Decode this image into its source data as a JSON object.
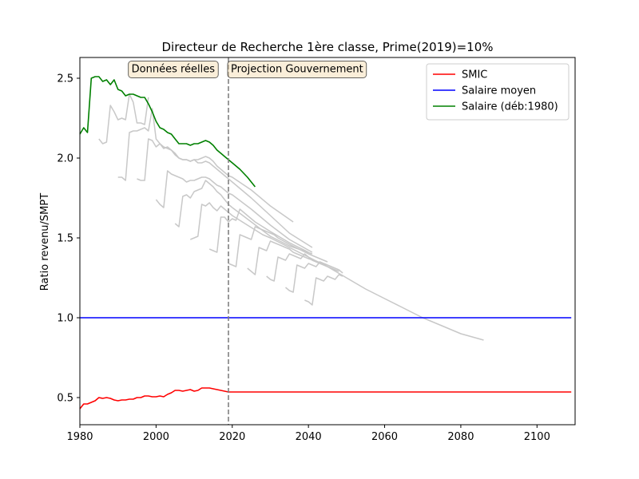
{
  "chart_data": {
    "type": "line",
    "title": "Directeur de Recherche 1ère classe, Prime(2019)=10%",
    "xlabel": "",
    "ylabel": "Ratio revenu/SMPT",
    "xlim": [
      1980,
      2110
    ],
    "ylim": [
      0.33,
      2.63
    ],
    "xticks": [
      1980,
      2000,
      2020,
      2040,
      2060,
      2080,
      2100
    ],
    "yticks": [
      0.5,
      1.0,
      1.5,
      2.0,
      2.5
    ],
    "xtick_labels": [
      "1980",
      "2000",
      "2020",
      "2040",
      "2060",
      "2080",
      "2100"
    ],
    "ytick_labels": [
      "0.5",
      "1.0",
      "1.5",
      "2.0",
      "2.5"
    ],
    "vline": {
      "x": 2019,
      "color": "#808080",
      "style": "dashed"
    },
    "annotations": [
      {
        "text": "Données réelles",
        "x": 2004.5,
        "y": 2.56
      },
      {
        "text": "Projection Gouvernement",
        "x": 2037,
        "y": 2.56
      }
    ],
    "legend": {
      "placement": "upper right"
    },
    "series": [
      {
        "name": "SMIC",
        "color": "#ff0000",
        "x": [
          1980,
          1981,
          1982,
          1983,
          1984,
          1985,
          1986,
          1987,
          1988,
          1989,
          1990,
          1991,
          1992,
          1993,
          1994,
          1995,
          1996,
          1997,
          1998,
          1999,
          2000,
          2001,
          2002,
          2003,
          2004,
          2005,
          2006,
          2007,
          2008,
          2009,
          2010,
          2011,
          2012,
          2013,
          2014,
          2015,
          2016,
          2017,
          2018,
          2019,
          2020,
          2030,
          2040,
          2060,
          2080,
          2100,
          2109
        ],
        "y": [
          0.43,
          0.46,
          0.46,
          0.47,
          0.48,
          0.5,
          0.495,
          0.5,
          0.495,
          0.485,
          0.48,
          0.485,
          0.485,
          0.49,
          0.49,
          0.5,
          0.5,
          0.51,
          0.51,
          0.505,
          0.505,
          0.51,
          0.505,
          0.52,
          0.53,
          0.545,
          0.545,
          0.54,
          0.545,
          0.55,
          0.54,
          0.545,
          0.56,
          0.56,
          0.56,
          0.555,
          0.55,
          0.545,
          0.54,
          0.535,
          0.535,
          0.535,
          0.535,
          0.535,
          0.535,
          0.535,
          0.535
        ]
      },
      {
        "name": "Salaire moyen",
        "color": "#0000ff",
        "x": [
          1980,
          2109
        ],
        "y": [
          1.0,
          1.0
        ]
      },
      {
        "name": "Salaire (déb:1980)",
        "color": "#008000",
        "x": [
          1980,
          1981,
          1982,
          1983,
          1984,
          1985,
          1986,
          1987,
          1988,
          1989,
          1990,
          1991,
          1992,
          1993,
          1994,
          1995,
          1996,
          1997,
          1998,
          1999,
          2000,
          2001,
          2002,
          2003,
          2004,
          2005,
          2006,
          2007,
          2008,
          2009,
          2010,
          2011,
          2012,
          2013,
          2014,
          2015,
          2016,
          2017,
          2018,
          2019,
          2020,
          2022,
          2024,
          2026
        ],
        "y": [
          2.15,
          2.19,
          2.16,
          2.5,
          2.51,
          2.51,
          2.48,
          2.49,
          2.46,
          2.49,
          2.43,
          2.42,
          2.39,
          2.4,
          2.4,
          2.39,
          2.38,
          2.38,
          2.34,
          2.29,
          2.23,
          2.19,
          2.18,
          2.16,
          2.15,
          2.12,
          2.09,
          2.09,
          2.09,
          2.08,
          2.09,
          2.09,
          2.1,
          2.11,
          2.1,
          2.08,
          2.05,
          2.03,
          2.01,
          1.99,
          1.97,
          1.93,
          1.88,
          1.82
        ]
      }
    ],
    "cohort_series": [
      {
        "color": "#c8c8c8",
        "x": [
          1985,
          1986,
          1987,
          1988,
          1989,
          1990,
          1991,
          1992,
          1993,
          1994,
          1995,
          1996,
          1997,
          1998
        ],
        "y": [
          2.12,
          2.09,
          2.1,
          2.33,
          2.29,
          2.24,
          2.25,
          2.24,
          2.4,
          2.35,
          2.22,
          2.22,
          2.21,
          2.38
        ]
      },
      {
        "color": "#c8c8c8",
        "x": [
          1990,
          1991,
          1992,
          1993,
          1994,
          1995,
          1996,
          1997,
          1998,
          1999,
          2000,
          2001,
          2002,
          2003,
          2004,
          2005,
          2006,
          2007,
          2008,
          2009,
          2010,
          2011,
          2012,
          2013,
          2014,
          2015,
          2016,
          2017,
          2018,
          2019,
          2020,
          2025,
          2030,
          2036
        ],
        "y": [
          1.88,
          1.88,
          1.86,
          2.16,
          2.17,
          2.17,
          2.18,
          2.19,
          2.17,
          2.31,
          2.12,
          2.09,
          2.07,
          2.06,
          2.05,
          2.02,
          2.0,
          1.99,
          1.99,
          1.98,
          1.99,
          1.99,
          2.0,
          2.01,
          2.0,
          1.98,
          1.95,
          1.93,
          1.91,
          1.89,
          1.88,
          1.8,
          1.7,
          1.6
        ]
      },
      {
        "color": "#c8c8c8",
        "x": [
          1995,
          1996,
          1997,
          1998,
          1999,
          2000,
          2001,
          2002,
          2003,
          2004,
          2005,
          2006,
          2007,
          2008,
          2009,
          2010,
          2011,
          2012,
          2013,
          2014,
          2015,
          2016,
          2017,
          2018,
          2019,
          2020,
          2025,
          2030,
          2035,
          2041
        ],
        "y": [
          1.87,
          1.86,
          1.86,
          2.12,
          2.11,
          2.07,
          2.09,
          2.06,
          2.07,
          2.05,
          2.03,
          2.0,
          1.99,
          1.99,
          1.98,
          1.99,
          1.97,
          1.97,
          1.98,
          1.97,
          1.95,
          1.93,
          1.91,
          1.89,
          1.87,
          1.85,
          1.75,
          1.64,
          1.53,
          1.44
        ]
      },
      {
        "color": "#c8c8c8",
        "x": [
          2000,
          2001,
          2002,
          2003,
          2004,
          2005,
          2006,
          2007,
          2008,
          2009,
          2010,
          2011,
          2012,
          2013,
          2014,
          2015,
          2016,
          2017,
          2018,
          2019,
          2020,
          2025,
          2030,
          2035,
          2041
        ],
        "y": [
          1.74,
          1.71,
          1.69,
          1.92,
          1.9,
          1.89,
          1.88,
          1.87,
          1.85,
          1.86,
          1.86,
          1.87,
          1.88,
          1.88,
          1.87,
          1.85,
          1.83,
          1.82,
          1.8,
          1.78,
          1.77,
          1.68,
          1.58,
          1.49,
          1.41
        ]
      },
      {
        "color": "#c8c8c8",
        "x": [
          2005,
          2006,
          2007,
          2008,
          2009,
          2010,
          2011,
          2012,
          2013,
          2014,
          2015,
          2016,
          2017,
          2018,
          2019,
          2020,
          2025,
          2030,
          2035,
          2041
        ],
        "y": [
          1.59,
          1.57,
          1.76,
          1.77,
          1.75,
          1.79,
          1.8,
          1.81,
          1.86,
          1.84,
          1.82,
          1.79,
          1.77,
          1.74,
          1.71,
          1.69,
          1.6,
          1.51,
          1.45,
          1.4
        ]
      },
      {
        "color": "#c8c8c8",
        "x": [
          2009,
          2010,
          2011,
          2012,
          2013,
          2014,
          2015,
          2016,
          2017,
          2018,
          2019,
          2020,
          2022,
          2024,
          2026,
          2028,
          2030,
          2035,
          2040,
          2045,
          2050,
          2055,
          2060,
          2065,
          2070,
          2075,
          2080,
          2086
        ],
        "y": [
          1.49,
          1.5,
          1.51,
          1.71,
          1.7,
          1.72,
          1.69,
          1.67,
          1.7,
          1.68,
          1.66,
          1.64,
          1.61,
          1.58,
          1.55,
          1.52,
          1.5,
          1.44,
          1.38,
          1.32,
          1.25,
          1.18,
          1.12,
          1.06,
          1.0,
          0.95,
          0.9,
          0.86
        ]
      },
      {
        "color": "#c8c8c8",
        "x": [
          2014,
          2015,
          2016,
          2017,
          2018,
          2019,
          2020,
          2021,
          2022,
          2023,
          2024,
          2025,
          2026,
          2030,
          2035,
          2040
        ],
        "y": [
          1.43,
          1.42,
          1.41,
          1.63,
          1.63,
          1.6,
          1.62,
          1.61,
          1.68,
          1.66,
          1.64,
          1.62,
          1.6,
          1.54,
          1.47,
          1.41
        ]
      },
      {
        "color": "#c8c8c8",
        "x": [
          2019,
          2020,
          2021,
          2022,
          2023,
          2024,
          2025,
          2026,
          2027,
          2028,
          2029,
          2030,
          2031,
          2032,
          2035,
          2040,
          2045
        ],
        "y": [
          1.34,
          1.33,
          1.32,
          1.52,
          1.51,
          1.5,
          1.49,
          1.57,
          1.56,
          1.55,
          1.54,
          1.53,
          1.52,
          1.5,
          1.46,
          1.4,
          1.35
        ]
      },
      {
        "color": "#c8c8c8",
        "x": [
          2024,
          2025,
          2026,
          2027,
          2028,
          2029,
          2030,
          2031,
          2032,
          2033,
          2034,
          2035,
          2036,
          2037,
          2038,
          2040,
          2045
        ],
        "y": [
          1.31,
          1.29,
          1.27,
          1.44,
          1.43,
          1.42,
          1.48,
          1.47,
          1.46,
          1.45,
          1.44,
          1.43,
          1.41,
          1.4,
          1.39,
          1.37,
          1.33
        ]
      },
      {
        "color": "#c8c8c8",
        "x": [
          2029,
          2030,
          2031,
          2032,
          2033,
          2034,
          2035,
          2036,
          2037,
          2038,
          2039,
          2040,
          2041,
          2042,
          2045,
          2048
        ],
        "y": [
          1.26,
          1.24,
          1.23,
          1.38,
          1.37,
          1.36,
          1.4,
          1.39,
          1.38,
          1.37,
          1.4,
          1.38,
          1.36,
          1.35,
          1.32,
          1.29
        ]
      },
      {
        "color": "#c8c8c8",
        "x": [
          2034,
          2035,
          2036,
          2037,
          2038,
          2039,
          2040,
          2041,
          2042,
          2043,
          2044,
          2045,
          2046,
          2047,
          2048,
          2049
        ],
        "y": [
          1.19,
          1.17,
          1.16,
          1.33,
          1.32,
          1.31,
          1.34,
          1.33,
          1.32,
          1.35,
          1.34,
          1.33,
          1.32,
          1.31,
          1.3,
          1.28
        ]
      },
      {
        "color": "#c8c8c8",
        "x": [
          2039,
          2040,
          2041,
          2042,
          2043,
          2044,
          2045,
          2046,
          2047,
          2048,
          2049
        ],
        "y": [
          1.11,
          1.1,
          1.08,
          1.25,
          1.24,
          1.23,
          1.26,
          1.25,
          1.24,
          1.27,
          1.26
        ]
      }
    ]
  }
}
